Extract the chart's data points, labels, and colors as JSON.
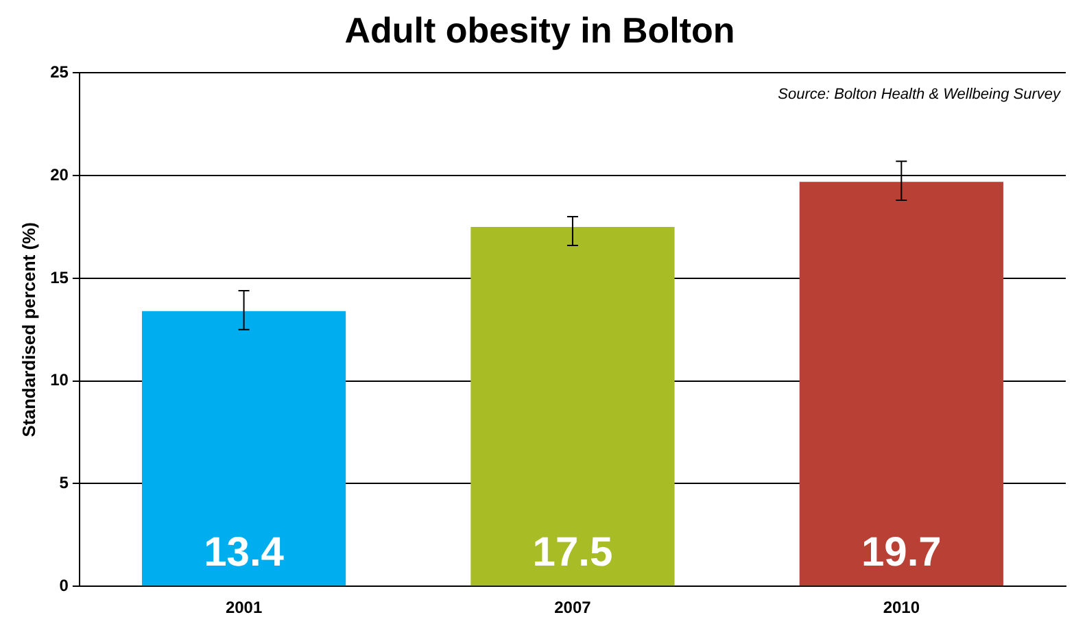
{
  "chart_data": {
    "type": "bar",
    "title": "Adult obesity in Bolton",
    "ylabel": "Standardised percent (%)",
    "annotations": [
      "Source: Bolton Health & Wellbeing Survey"
    ],
    "categories": [
      "2001",
      "2007",
      "2010"
    ],
    "values": [
      13.4,
      17.5,
      19.7
    ],
    "colors": [
      "#00aeef",
      "#a8bd25",
      "#b94035"
    ],
    "errors": [
      [
        12.5,
        14.4
      ],
      [
        16.6,
        18.0
      ],
      [
        18.8,
        20.7
      ]
    ],
    "ylim": [
      0,
      25
    ],
    "yticks": [
      0,
      5,
      10,
      15,
      20,
      25
    ],
    "grid": "y",
    "data_labels": true,
    "legend": false
  }
}
